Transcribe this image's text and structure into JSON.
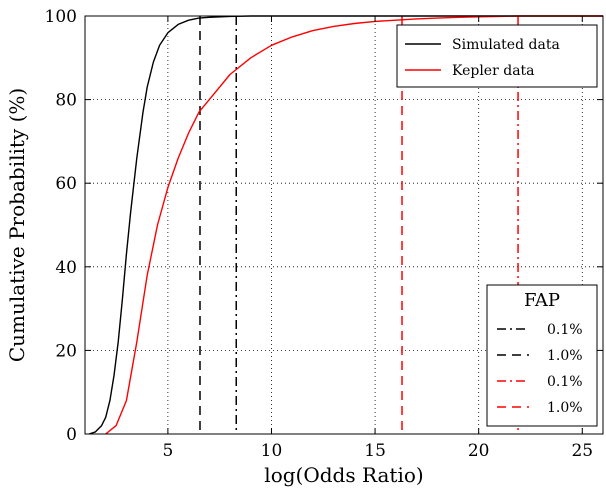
{
  "chart_data": {
    "type": "line",
    "xlabel": "log(Odds Ratio)",
    "ylabel": "Cumulative Probability (%)",
    "xlim": [
      1.0,
      26.0
    ],
    "ylim": [
      0,
      100
    ],
    "xticks": [
      5,
      10,
      15,
      20,
      25
    ],
    "yticks": [
      0,
      20,
      40,
      60,
      80,
      100
    ],
    "grid": "dotted",
    "series": [
      {
        "name": "Simulated data",
        "color": "#000000",
        "x": [
          1.2,
          1.5,
          1.8,
          2.0,
          2.2,
          2.4,
          2.6,
          2.8,
          3.0,
          3.2,
          3.5,
          3.8,
          4.0,
          4.3,
          4.6,
          5.0,
          5.5,
          6.0,
          6.5,
          7.0,
          8.0,
          9.0,
          10.0,
          26.0
        ],
        "y": [
          0,
          0.5,
          2,
          4,
          8,
          14,
          22,
          32,
          43,
          53,
          66,
          77,
          83,
          89,
          93,
          96,
          98,
          99,
          99.5,
          99.7,
          99.9,
          100,
          100,
          100
        ]
      },
      {
        "name": "Kepler data",
        "color": "#ff0000",
        "x": [
          2.0,
          2.5,
          3.0,
          3.5,
          4.0,
          4.5,
          5.0,
          5.5,
          6.0,
          6.5,
          7.0,
          8.0,
          9.0,
          10.0,
          11.0,
          12.0,
          13.0,
          14.0,
          15.0,
          16.0,
          17.0,
          18.0,
          19.0,
          20.0,
          21.0,
          22.0,
          26.0
        ],
        "y": [
          0,
          2,
          8,
          22,
          38,
          50,
          59,
          66,
          72,
          77,
          80,
          86,
          90,
          93,
          95,
          96.5,
          97.5,
          98.2,
          98.7,
          99.0,
          99.3,
          99.5,
          99.7,
          99.8,
          99.9,
          100,
          100
        ]
      }
    ],
    "legend": {
      "placement": "top-right",
      "entries": [
        "Simulated data",
        "Kepler data"
      ]
    },
    "fap_legend": {
      "placement": "lower-right",
      "title": "FAP",
      "entries": [
        {
          "label": "0.1%",
          "color": "#000000",
          "style": "dashdot"
        },
        {
          "label": "1.0%",
          "color": "#000000",
          "style": "dashed"
        },
        {
          "label": "0.1%",
          "color": "#ff0000",
          "style": "dashdot"
        },
        {
          "label": "1.0%",
          "color": "#ff0000",
          "style": "dashed"
        }
      ]
    },
    "vlines": [
      {
        "x": 6.55,
        "color": "#000000",
        "style": "dashed",
        "fap": "1.0%"
      },
      {
        "x": 8.3,
        "color": "#000000",
        "style": "dashdot",
        "fap": "0.1%"
      },
      {
        "x": 16.3,
        "color": "#ff0000",
        "style": "dashed",
        "fap": "1.0%"
      },
      {
        "x": 21.9,
        "color": "#ff0000",
        "style": "dashdot",
        "fap": "0.1%"
      }
    ]
  }
}
